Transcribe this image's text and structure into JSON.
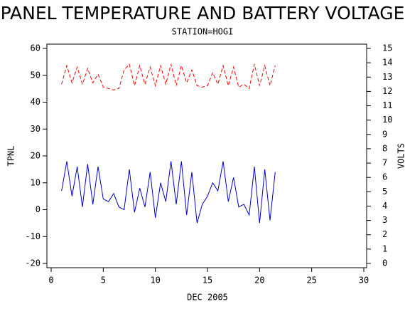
{
  "chart_data": {
    "type": "line",
    "title": "PANEL TEMPERATURE AND BATTERY VOLTAGE",
    "subtitle": "STATION=HOGI",
    "xlabel": "DEC 2005",
    "ylabel": "TPNL",
    "y2label": "VOLTS",
    "x": [
      1,
      1.5,
      2,
      2.5,
      3,
      3.5,
      4,
      4.5,
      5,
      5.5,
      6,
      6.5,
      7,
      7.5,
      8,
      8.5,
      9,
      9.5,
      10,
      10.5,
      11,
      11.5,
      12,
      12.5,
      13,
      13.5,
      14,
      14.5,
      15,
      15.5,
      16,
      16.5,
      17,
      17.5,
      18,
      18.5,
      19,
      19.5,
      20,
      20.5,
      21,
      21.5
    ],
    "series": [
      {
        "color": "#0000cc",
        "values": [
          7,
          18,
          5,
          16,
          1,
          17,
          2,
          16,
          4,
          3,
          6,
          1,
          0,
          15,
          -1,
          8,
          1,
          14,
          -3,
          10,
          3,
          18,
          2,
          18,
          -2,
          14,
          -5,
          2,
          5,
          10,
          7,
          18,
          3,
          12,
          1,
          2,
          -2,
          16,
          -5,
          15,
          -4,
          14
        ]
      },
      {
        "color": "#ff0000",
        "axis": "y2",
        "dashed": true,
        "values": [
          12.5,
          13.8,
          12.6,
          13.7,
          12.5,
          13.6,
          12.6,
          13.2,
          12.3,
          12.2,
          12.1,
          12.2,
          13.5,
          13.9,
          12.4,
          13.8,
          12.5,
          13.7,
          12.4,
          13.8,
          12.5,
          13.9,
          12.4,
          13.8,
          12.6,
          13.5,
          12.4,
          12.3,
          12.4,
          13.3,
          12.5,
          13.8,
          12.4,
          13.7,
          12.3,
          12.5,
          12.2,
          13.9,
          12.4,
          13.8,
          12.4,
          13.8
        ]
      }
    ],
    "xlim": [
      0,
      30
    ],
    "xticks": [
      0,
      5,
      10,
      15,
      20,
      25,
      30
    ],
    "ylim": [
      -20,
      60
    ],
    "yticks": [
      -20,
      -10,
      0,
      10,
      20,
      30,
      40,
      50,
      60
    ],
    "y2lim": [
      0,
      15
    ],
    "y2ticks": [
      0,
      1,
      2,
      3,
      4,
      5,
      6,
      7,
      8,
      9,
      10,
      11,
      12,
      13,
      14,
      15
    ]
  }
}
